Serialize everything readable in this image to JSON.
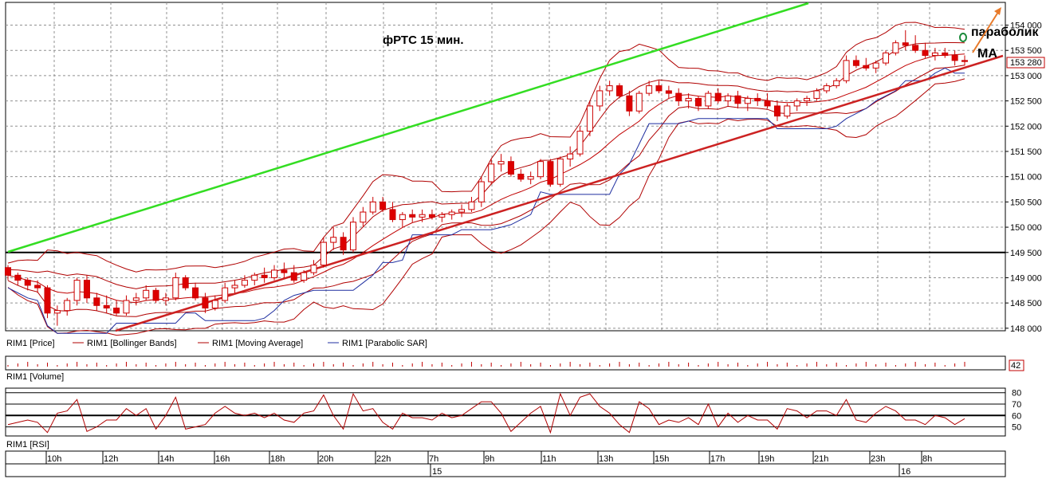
{
  "chart_data": {
    "type": "candlestick",
    "title": "фРТС   15 мин.",
    "annotations": [
      "параболик",
      "MA"
    ],
    "price_axis": {
      "ticks": [
        148000,
        148500,
        149000,
        149500,
        150000,
        150500,
        151000,
        151500,
        152000,
        152500,
        153000,
        153500,
        154000
      ],
      "labels": [
        "148 000",
        "148 500",
        "149 000",
        "149 500",
        "150 000",
        "150 500",
        "151 000",
        "151 500",
        "152 000",
        "152 500",
        "153 000",
        "153 500",
        "154 000"
      ],
      "ylim": [
        147950,
        154450
      ],
      "last_price": 153280,
      "last_price_label": "153 280"
    },
    "time_axis": {
      "labels": [
        "10h",
        "12h",
        "14h",
        "16h",
        "18h",
        "20h",
        "22h",
        "7h",
        "9h",
        "11h",
        "13h",
        "15h",
        "17h",
        "19h",
        "21h",
        "23h",
        "8h"
      ],
      "dates": [
        "15",
        "16"
      ]
    },
    "legend": [
      "RIM1 [Price]",
      "RIM1 [Bollinger Bands]",
      "RIM1 [Moving Average]",
      "RIM1 [Parabolic SAR]"
    ],
    "volume_panel": {
      "label": "RIM1 [Volume]",
      "last_value": "42"
    },
    "rsi_panel": {
      "label": "RIM1 [RSI]",
      "ticks": [
        "80",
        "70",
        "60",
        "50"
      ],
      "levels": [
        80,
        70,
        60,
        50
      ]
    },
    "horizontal_level": 149500,
    "candles": [
      [
        149200,
        149250,
        148950,
        149050
      ],
      [
        149050,
        149100,
        148850,
        148950
      ],
      [
        148950,
        149000,
        148750,
        148850
      ],
      [
        148850,
        148950,
        148700,
        148800
      ],
      [
        148800,
        148850,
        148200,
        148300
      ],
      [
        148300,
        148450,
        148050,
        148350
      ],
      [
        148350,
        148600,
        148250,
        148550
      ],
      [
        148550,
        149000,
        148450,
        148950
      ],
      [
        148950,
        149050,
        148500,
        148600
      ],
      [
        148600,
        148700,
        148350,
        148450
      ],
      [
        148450,
        148650,
        148300,
        148400
      ],
      [
        148400,
        148550,
        148250,
        148300
      ],
      [
        148300,
        148650,
        148250,
        148550
      ],
      [
        148550,
        148700,
        148450,
        148600
      ],
      [
        148600,
        148850,
        148550,
        148750
      ],
      [
        148750,
        148800,
        148500,
        148550
      ],
      [
        148550,
        148700,
        148450,
        148600
      ],
      [
        148600,
        149100,
        148550,
        149000
      ],
      [
        149000,
        149050,
        148750,
        148800
      ],
      [
        148800,
        148900,
        148550,
        148600
      ],
      [
        148600,
        148700,
        148300,
        148400
      ],
      [
        148400,
        148650,
        148350,
        148550
      ],
      [
        148550,
        148900,
        148500,
        148800
      ],
      [
        148800,
        148950,
        148700,
        148850
      ],
      [
        148850,
        149050,
        148800,
        148950
      ],
      [
        148950,
        149100,
        148850,
        149050
      ],
      [
        149050,
        149200,
        148900,
        149000
      ],
      [
        149000,
        149250,
        148950,
        149150
      ],
      [
        149150,
        149300,
        149000,
        149100
      ],
      [
        149100,
        149250,
        148900,
        148950
      ],
      [
        148950,
        149150,
        148900,
        149100
      ],
      [
        149100,
        149350,
        149050,
        149250
      ],
      [
        149250,
        149800,
        149200,
        149700
      ],
      [
        149700,
        150000,
        149550,
        149800
      ],
      [
        149800,
        149900,
        149450,
        149550
      ],
      [
        149550,
        150200,
        149500,
        150100
      ],
      [
        150100,
        150400,
        150000,
        150300
      ],
      [
        150300,
        150600,
        150250,
        150500
      ],
      [
        150500,
        150600,
        150300,
        150350
      ],
      [
        150350,
        150500,
        150100,
        150150
      ],
      [
        150150,
        150300,
        150000,
        150250
      ],
      [
        150250,
        150350,
        150100,
        150200
      ],
      [
        150200,
        150350,
        150100,
        150250
      ],
      [
        150250,
        150350,
        150150,
        150200
      ],
      [
        150200,
        150300,
        150100,
        150250
      ],
      [
        150250,
        150350,
        150150,
        150300
      ],
      [
        150300,
        150450,
        150200,
        150350
      ],
      [
        150350,
        150600,
        150300,
        150500
      ],
      [
        150500,
        151000,
        150400,
        150900
      ],
      [
        150900,
        151350,
        150850,
        151250
      ],
      [
        151250,
        151450,
        151100,
        151300
      ],
      [
        151300,
        151400,
        151000,
        151050
      ],
      [
        151050,
        151150,
        150900,
        150950
      ],
      [
        150950,
        151100,
        150850,
        151000
      ],
      [
        151000,
        151350,
        150950,
        151300
      ],
      [
        151300,
        151350,
        150800,
        150850
      ],
      [
        150850,
        151400,
        150800,
        151350
      ],
      [
        151350,
        151600,
        151200,
        151450
      ],
      [
        151450,
        152000,
        151400,
        151900
      ],
      [
        151900,
        152500,
        151800,
        152400
      ],
      [
        152400,
        152800,
        152300,
        152700
      ],
      [
        152700,
        152900,
        152600,
        152800
      ],
      [
        152800,
        152850,
        152550,
        152600
      ],
      [
        152600,
        152700,
        152200,
        152300
      ],
      [
        152300,
        152700,
        152250,
        152650
      ],
      [
        152650,
        152900,
        152600,
        152800
      ],
      [
        152800,
        152900,
        152650,
        152700
      ],
      [
        152700,
        152800,
        152550,
        152650
      ],
      [
        152650,
        152750,
        152400,
        152500
      ],
      [
        152500,
        152650,
        152350,
        152550
      ],
      [
        152550,
        152600,
        152300,
        152400
      ],
      [
        152400,
        152700,
        152350,
        152650
      ],
      [
        152650,
        152750,
        152450,
        152500
      ],
      [
        152500,
        152650,
        152400,
        152600
      ],
      [
        152600,
        152700,
        152350,
        152450
      ],
      [
        152450,
        152600,
        152300,
        152550
      ],
      [
        152550,
        152650,
        152400,
        152500
      ],
      [
        152500,
        152650,
        152350,
        152400
      ],
      [
        152400,
        152500,
        152100,
        152200
      ],
      [
        152200,
        152450,
        152150,
        152400
      ],
      [
        152400,
        152550,
        152300,
        152500
      ],
      [
        152500,
        152600,
        152400,
        152550
      ],
      [
        152550,
        152750,
        152500,
        152700
      ],
      [
        152700,
        152850,
        152650,
        152800
      ],
      [
        152800,
        152950,
        152750,
        152900
      ],
      [
        152900,
        153400,
        152850,
        153300
      ],
      [
        153300,
        153400,
        153150,
        153200
      ],
      [
        153200,
        153350,
        153100,
        153150
      ],
      [
        153150,
        153300,
        153050,
        153250
      ],
      [
        153250,
        153500,
        153200,
        153450
      ],
      [
        153450,
        153700,
        153400,
        153650
      ],
      [
        153650,
        153900,
        153500,
        153600
      ],
      [
        153600,
        153800,
        153450,
        153500
      ],
      [
        153500,
        153650,
        153350,
        153400
      ],
      [
        153400,
        153550,
        153300,
        153450
      ],
      [
        153450,
        153550,
        153350,
        153400
      ],
      [
        153400,
        153500,
        153200,
        153300
      ],
      [
        153300,
        153400,
        153200,
        153280
      ]
    ]
  }
}
